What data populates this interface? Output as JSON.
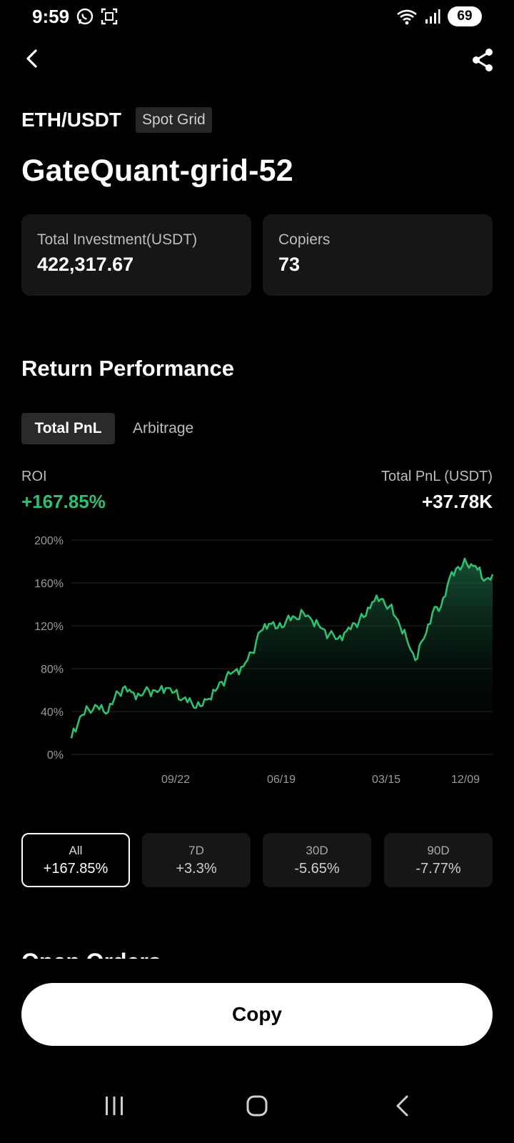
{
  "status_bar": {
    "time": "9:59",
    "battery": "69"
  },
  "header": {
    "pair": "ETH/USDT",
    "strategy_badge": "Spot Grid",
    "bot_name": "GateQuant-grid-52"
  },
  "stats": {
    "investment_label": "Total Investment(USDT)",
    "investment_value": "422,317.67",
    "copiers_label": "Copiers",
    "copiers_value": "73"
  },
  "performance": {
    "title": "Return Performance",
    "tabs": [
      {
        "label": "Total PnL",
        "active": true
      },
      {
        "label": "Arbitrage",
        "active": false
      }
    ],
    "roi_label": "ROI",
    "roi_value": "+167.85%",
    "pnl_label": "Total PnL (USDT)",
    "pnl_value": "+37.78K"
  },
  "chart_data": {
    "type": "area",
    "y_ticks": [
      "200%",
      "160%",
      "120%",
      "80%",
      "40%",
      "0%"
    ],
    "x_ticks": [
      "09/22",
      "06/19",
      "03/15",
      "12/09"
    ],
    "ylim": [
      0,
      200
    ],
    "grid": true,
    "series": [
      {
        "values": [
          15,
          35,
          42,
          45,
          38,
          52,
          62,
          58,
          55,
          60,
          58,
          62,
          58,
          52,
          48,
          45,
          52,
          62,
          72,
          78,
          82,
          95,
          115,
          122,
          118,
          125,
          128,
          132,
          125,
          118,
          112,
          108,
          115,
          122,
          128,
          142,
          145,
          138,
          125,
          108,
          88,
          108,
          132,
          138,
          165,
          175,
          178,
          176,
          162,
          168
        ]
      }
    ],
    "colors": {
      "line": "#2fbf71",
      "fill_top": "#1d6b45",
      "grid": "#262626"
    }
  },
  "periods": [
    {
      "label": "All",
      "value": "+167.85%",
      "active": true
    },
    {
      "label": "7D",
      "value": "+3.3%",
      "active": false
    },
    {
      "label": "30D",
      "value": "-5.65%",
      "active": false
    },
    {
      "label": "90D",
      "value": "-7.77%",
      "active": false
    }
  ],
  "next_section_title": "Open Orders",
  "copy_button": "Copy",
  "icons": [
    "whatsapp-icon",
    "screenshot-icon",
    "wifi-icon",
    "signal-icon",
    "back-arrow-icon",
    "share-icon",
    "recent-apps-icon",
    "home-icon",
    "nav-back-icon"
  ]
}
